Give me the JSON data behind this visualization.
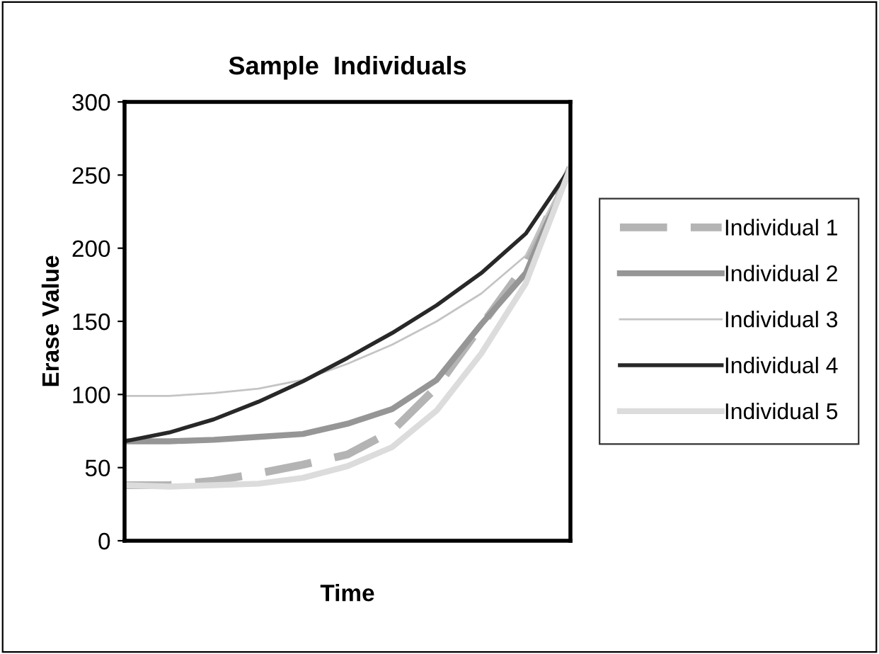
{
  "chart_data": {
    "type": "line",
    "title": "Sample  Individuals",
    "xlabel": "Time",
    "ylabel": "Erase Value",
    "categories": [
      null,
      null,
      null,
      null,
      null,
      null,
      null,
      null,
      null,
      null,
      null
    ],
    "series": [
      {
        "name": "Individual 1",
        "color": "#b4b4b4",
        "line_style": "dashed",
        "values": [
          38,
          38,
          41,
          46,
          52,
          59,
          75,
          105,
          147,
          189,
          255
        ]
      },
      {
        "name": "Individual 2",
        "color": "#969696",
        "values": [
          68,
          68,
          69,
          71,
          73,
          80,
          90,
          110,
          148,
          183,
          255
        ]
      },
      {
        "name": "Individual 3",
        "color": "#c4c4c4",
        "values": [
          99,
          99,
          101,
          104,
          110,
          121,
          134,
          150,
          169,
          195,
          255
        ]
      },
      {
        "name": "Individual 4",
        "color": "#282828",
        "values": [
          68,
          74,
          83,
          95,
          109,
          125,
          142,
          161,
          183,
          210,
          255
        ]
      },
      {
        "name": "Individual 5",
        "color": "#dcdcdc",
        "values": [
          38,
          37,
          38,
          39,
          43,
          51,
          64,
          89,
          128,
          176,
          255
        ]
      }
    ],
    "ylim": [
      0,
      300
    ],
    "yticks": [
      0,
      50,
      100,
      150,
      200,
      250,
      300
    ],
    "grid": false,
    "legend": "right",
    "marker": "none",
    "line_style": "solid",
    "tick_labels": "y"
  }
}
